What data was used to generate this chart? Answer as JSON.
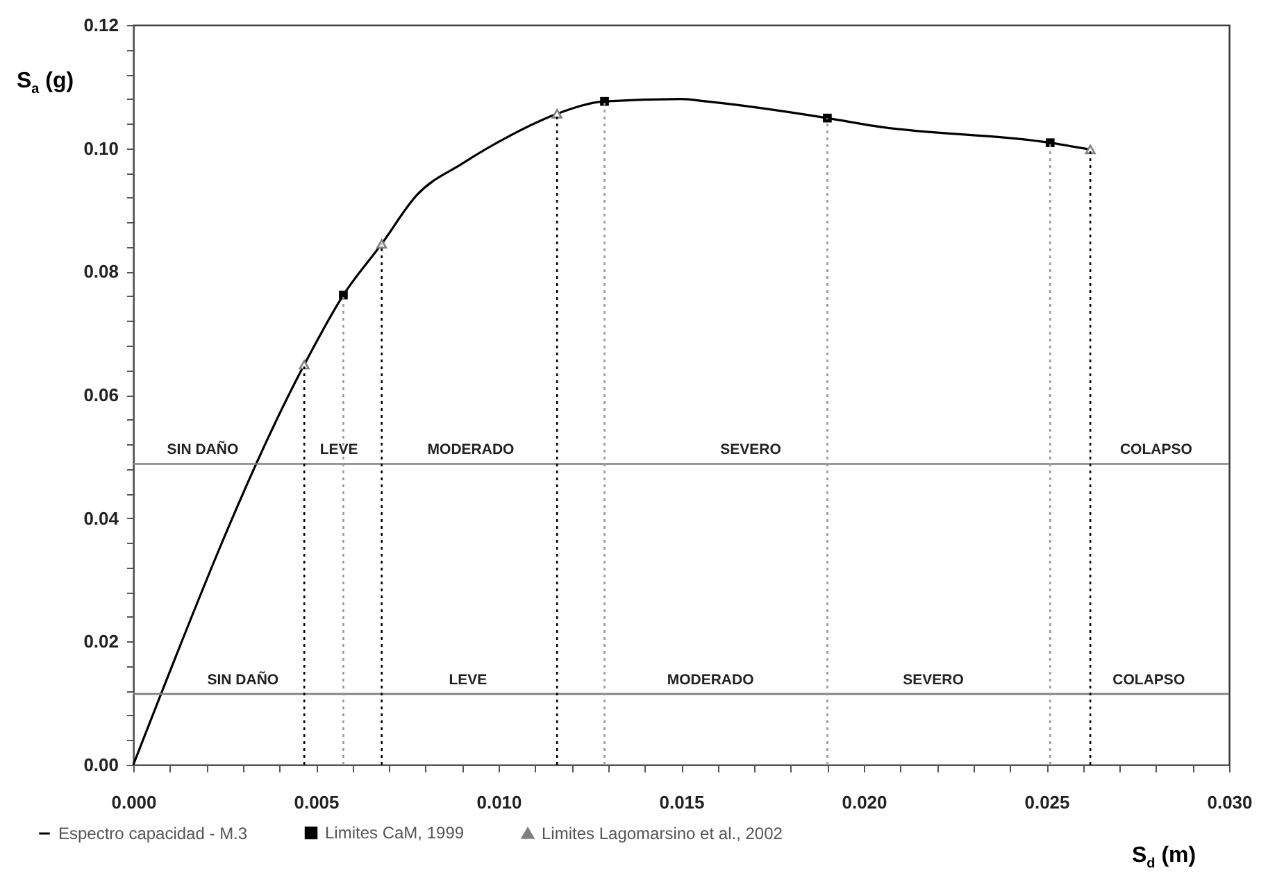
{
  "chart_data": {
    "type": "line",
    "xlabel": "S$_{d}$ (m)",
    "ylabel": "S$_{a}$ (g)",
    "xlim": [
      0,
      0.03
    ],
    "ylim": [
      0,
      0.12
    ],
    "xticks": [
      {
        "value": 0,
        "label": "0.000"
      },
      {
        "value": 0.001,
        "label": null
      },
      {
        "value": 0.002,
        "label": null
      },
      {
        "value": 0.003,
        "label": null
      },
      {
        "value": 0.004,
        "label": null
      },
      {
        "value": 0.005,
        "label": "0.005"
      },
      {
        "value": 0.006,
        "label": null
      },
      {
        "value": 0.007,
        "label": null
      },
      {
        "value": 0.008,
        "label": null
      },
      {
        "value": 0.009,
        "label": null
      },
      {
        "value": 0.01,
        "label": "0.010"
      },
      {
        "value": 0.011,
        "label": null
      },
      {
        "value": 0.012,
        "label": null
      },
      {
        "value": 0.013,
        "label": null
      },
      {
        "value": 0.014,
        "label": null
      },
      {
        "value": 0.015,
        "label": "0.015"
      },
      {
        "value": 0.016,
        "label": null
      },
      {
        "value": 0.017,
        "label": null
      },
      {
        "value": 0.018,
        "label": null
      },
      {
        "value": 0.019,
        "label": null
      },
      {
        "value": 0.02,
        "label": "0.020"
      },
      {
        "value": 0.021,
        "label": null
      },
      {
        "value": 0.022,
        "label": null
      },
      {
        "value": 0.023,
        "label": null
      },
      {
        "value": 0.024,
        "label": null
      },
      {
        "value": 0.025,
        "label": "0.025"
      },
      {
        "value": 0.026,
        "label": null
      },
      {
        "value": 0.027,
        "label": null
      },
      {
        "value": 0.028,
        "label": null
      },
      {
        "value": 0.029,
        "label": null
      },
      {
        "value": 0.03,
        "label": "0.030"
      }
    ],
    "yticks": [
      {
        "value": 0,
        "label": "0.00"
      },
      {
        "value": 0.004,
        "label": null
      },
      {
        "value": 0.008,
        "label": null
      },
      {
        "value": 0.012,
        "label": null
      },
      {
        "value": 0.016,
        "label": null
      },
      {
        "value": 0.02,
        "label": "0.02"
      },
      {
        "value": 0.024,
        "label": null
      },
      {
        "value": 0.028,
        "label": null
      },
      {
        "value": 0.032,
        "label": null
      },
      {
        "value": 0.036,
        "label": null
      },
      {
        "value": 0.04,
        "label": "0.04"
      },
      {
        "value": 0.044,
        "label": null
      },
      {
        "value": 0.048,
        "label": null
      },
      {
        "value": 0.052,
        "label": null
      },
      {
        "value": 0.056,
        "label": null
      },
      {
        "value": 0.06,
        "label": "0.06"
      },
      {
        "value": 0.064,
        "label": null
      },
      {
        "value": 0.068,
        "label": null
      },
      {
        "value": 0.072,
        "label": null
      },
      {
        "value": 0.076,
        "label": null
      },
      {
        "value": 0.08,
        "label": "0.08"
      },
      {
        "value": 0.084,
        "label": null
      },
      {
        "value": 0.088,
        "label": null
      },
      {
        "value": 0.092,
        "label": null
      },
      {
        "value": 0.096,
        "label": null
      },
      {
        "value": 0.1,
        "label": "0.10"
      },
      {
        "value": 0.104,
        "label": null
      },
      {
        "value": 0.108,
        "label": null
      },
      {
        "value": 0.112,
        "label": null
      },
      {
        "value": 0.116,
        "label": null
      },
      {
        "value": 0.12,
        "label": "0.12"
      }
    ],
    "grid": false,
    "legend": "bottom",
    "series": [
      {
        "name": "Espectro capacidad - M.3",
        "color": "#000000",
        "marker": "none",
        "x": [
          0,
          0.00468,
          0.00575,
          0.0068,
          0.00776,
          0.009,
          0.0103,
          0.0116,
          0.0129,
          0.015,
          0.0157,
          0.019,
          0.0203,
          0.0251,
          0.0262
        ],
        "values": [
          0,
          0.0649,
          0.0762,
          0.0845,
          0.0924,
          0.0975,
          0.102,
          0.1056,
          0.1076,
          0.108,
          0.1076,
          0.1049,
          0.1036,
          0.1009,
          0.0998
        ]
      },
      {
        "name": "Limites CaM, 1999",
        "type": "scatter",
        "color": "#000000",
        "marker": "square",
        "x": [
          0.00575,
          0.0129,
          0.019,
          0.0251
        ],
        "values": [
          0.0762,
          0.1076,
          0.1049,
          0.1009
        ]
      },
      {
        "name": "Limites Lagomarsino et al., 2002",
        "type": "scatter",
        "color": "#808080",
        "marker": "triangle",
        "x": [
          0.00468,
          0.0068,
          0.0116,
          0.0262
        ],
        "values": [
          0.0649,
          0.0845,
          0.1056,
          0.0998
        ]
      },
      {
        "type": "line",
        "color": "#808080",
        "marker": "none",
        "x": [
          0,
          0.00468,
          0.0068,
          0.0116,
          0.0262,
          0.03
        ],
        "values": [
          0.0488,
          0.0488,
          0.0488,
          0.0488,
          0.0488,
          0.0488
        ]
      },
      {
        "type": "line",
        "color": "#808080",
        "marker": "none",
        "x": [
          0,
          0.00575,
          0.0129,
          0.019,
          0.0251,
          0.03
        ],
        "values": [
          0.0115,
          0.0115,
          0.0115,
          0.0115,
          0.0115,
          0.0115
        ]
      },
      {
        "type": "line",
        "color": "#000000",
        "marker": "none",
        "line_style": "dotted",
        "x": [
          0.00468,
          0.00468
        ],
        "values": [
          0,
          0.0649
        ]
      },
      {
        "type": "line",
        "color": "#000000",
        "marker": "none",
        "line_style": "dotted",
        "x": [
          0.0068,
          0.0068
        ],
        "values": [
          0,
          0.0845
        ]
      },
      {
        "type": "line",
        "color": "#000000",
        "marker": "none",
        "line_style": "dotted",
        "x": [
          0.0116,
          0.0116
        ],
        "values": [
          0,
          0.1056
        ]
      },
      {
        "type": "line",
        "color": "#000000",
        "marker": "none",
        "line_style": "dotted",
        "x": [
          0.0262,
          0.0262
        ],
        "values": [
          0,
          0.0998
        ]
      },
      {
        "type": "line",
        "color": "#999999",
        "marker": "none",
        "line_style": "dotted",
        "x": [
          0.00575,
          0.00575
        ],
        "values": [
          0,
          0.0762
        ]
      },
      {
        "type": "line",
        "color": "#999999",
        "marker": "none",
        "line_style": "dotted",
        "x": [
          0.0129,
          0.0129
        ],
        "values": [
          0,
          0.1076
        ]
      },
      {
        "type": "line",
        "color": "#999999",
        "marker": "none",
        "line_style": "dotted",
        "x": [
          0.019,
          0.019
        ],
        "values": [
          0,
          0.1049
        ]
      },
      {
        "type": "line",
        "color": "#999999",
        "marker": "none",
        "line_style": "dotted",
        "x": [
          0.0251,
          0.0251
        ],
        "values": [
          0,
          0.1009
        ]
      }
    ],
    "annotations": [
      {
        "text": "SIN DAÑO",
        "x": 0.0019,
        "y": 0.0488
      },
      {
        "text": "LEVE",
        "x": 0.00563,
        "y": 0.0488
      },
      {
        "text": "MODERADO",
        "x": 0.00924,
        "y": 0.0488
      },
      {
        "text": "SEVERO",
        "x": 0.0169,
        "y": 0.0488
      },
      {
        "text": "COLAPSO",
        "x": 0.028,
        "y": 0.0488
      },
      {
        "text": "SIN DAÑO",
        "x": 0.003,
        "y": 0.0115
      },
      {
        "text": "LEVE",
        "x": 0.00916,
        "y": 0.0115
      },
      {
        "text": "MODERADO",
        "x": 0.0158,
        "y": 0.0115
      },
      {
        "text": "SEVERO",
        "x": 0.0219,
        "y": 0.0115
      },
      {
        "text": "COLAPSO",
        "x": 0.0278,
        "y": 0.0115
      }
    ]
  }
}
